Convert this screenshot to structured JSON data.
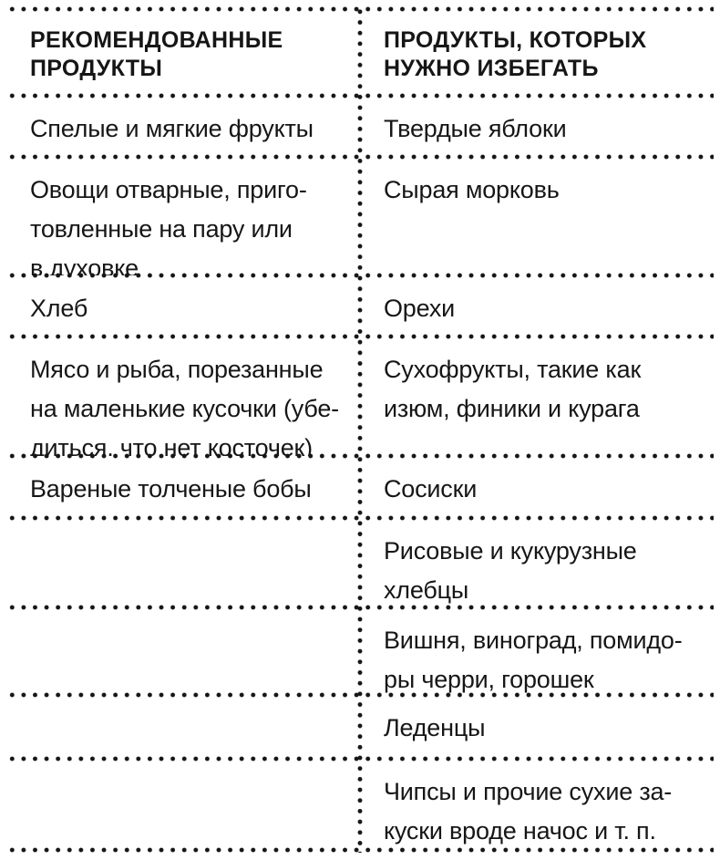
{
  "colors": {
    "ink": "#161616",
    "background": "#ffffff"
  },
  "table": {
    "headers": {
      "left": "РЕКОМЕНДОВАННЫЕ\nПРОДУКТЫ",
      "right": "ПРОДУКТЫ, КОТОРЫХ\nНУЖНО ИЗБЕГАТЬ"
    },
    "rows": [
      {
        "left": "Спелые и мягкие фрукты",
        "right": "Твердые яблоки"
      },
      {
        "left": "Овощи отварные, приго-\nтовленные на пару или\nв духовке",
        "right": "Сырая морковь"
      },
      {
        "left": "Хлеб",
        "right": "Орехи"
      },
      {
        "left": "Мясо и рыба, порезанные\nна маленькие кусочки (убе-\nдиться, что нет косточек)",
        "right": "Сухофрукты, такие как\nизюм, финики и курага"
      },
      {
        "left": "Вареные толченые бобы",
        "right": "Сосиски"
      },
      {
        "left": "",
        "right": "Рисовые и кукурузные\nхлебцы"
      },
      {
        "left": "",
        "right": "Вишня, виноград, помидо-\nры черри, горошек"
      },
      {
        "left": "",
        "right": "Леденцы"
      },
      {
        "left": "",
        "right": "Чипсы и прочие сухие за-\nкуски вроде начос и т. п."
      }
    ]
  }
}
